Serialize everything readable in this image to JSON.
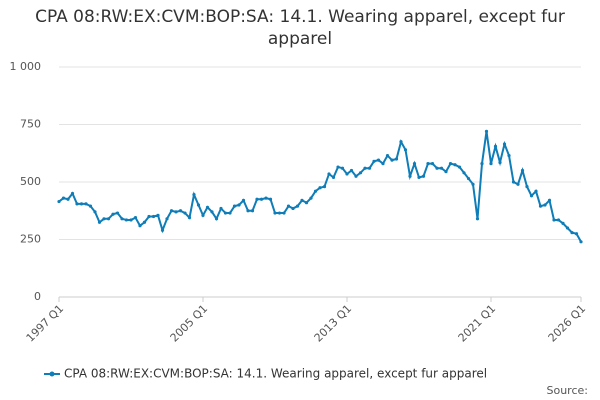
{
  "chart_data": {
    "type": "line",
    "title": "CPA 08:RW:EX:CVM:BOP:SA: 14.1. Wearing apparel, except fur apparel",
    "source": "Source:",
    "categories": [
      "1997 Q1",
      null,
      null,
      null,
      null,
      null,
      null,
      null,
      null,
      null,
      null,
      null,
      null,
      null,
      null,
      null,
      null,
      null,
      null,
      null,
      null,
      null,
      null,
      null,
      null,
      null,
      null,
      null,
      null,
      null,
      null,
      null,
      "2005 Q1",
      null,
      null,
      null,
      null,
      null,
      null,
      null,
      null,
      null,
      null,
      null,
      null,
      null,
      null,
      null,
      null,
      null,
      null,
      null,
      null,
      null,
      null,
      null,
      null,
      null,
      null,
      null,
      null,
      null,
      null,
      null,
      "2013 Q1",
      null,
      null,
      null,
      null,
      null,
      null,
      null,
      null,
      null,
      null,
      null,
      null,
      null,
      null,
      null,
      null,
      null,
      null,
      null,
      null,
      null,
      null,
      null,
      null,
      null,
      null,
      null,
      null,
      null,
      null,
      null,
      "2021 Q1",
      null,
      null,
      null,
      null,
      null,
      null,
      null,
      null,
      null,
      null,
      null,
      null,
      null,
      null,
      null,
      null,
      null,
      null,
      null,
      "2026 Q1"
    ],
    "series": [
      {
        "name": "CPA 08:RW:EX:CVM:BOP:SA: 14.1. Wearing apparel, except fur apparel",
        "color": "#0e7db8",
        "values": [
          415,
          430,
          425,
          450,
          405,
          405,
          405,
          395,
          370,
          325,
          340,
          340,
          360,
          365,
          340,
          335,
          335,
          345,
          310,
          325,
          350,
          350,
          355,
          290,
          340,
          375,
          370,
          375,
          365,
          345,
          445,
          400,
          355,
          390,
          370,
          340,
          385,
          365,
          365,
          395,
          400,
          420,
          375,
          375,
          425,
          425,
          430,
          425,
          365,
          365,
          365,
          395,
          385,
          395,
          420,
          410,
          430,
          460,
          475,
          480,
          535,
          520,
          565,
          560,
          535,
          550,
          525,
          540,
          560,
          560,
          590,
          595,
          580,
          615,
          595,
          600,
          675,
          640,
          525,
          580,
          520,
          525,
          580,
          580,
          560,
          560,
          545,
          580,
          575,
          565,
          540,
          515,
          490,
          340,
          580,
          720,
          580,
          655,
          585,
          665,
          615,
          500,
          490,
          550,
          480,
          440,
          460,
          395,
          400,
          420,
          335,
          335,
          320,
          300,
          280,
          275,
          240
        ]
      }
    ],
    "ylim": [
      0,
      1000
    ],
    "yticks": [
      0,
      250,
      500,
      750,
      {
        "value": 1000,
        "label": "1 000"
      }
    ],
    "grid": true
  }
}
